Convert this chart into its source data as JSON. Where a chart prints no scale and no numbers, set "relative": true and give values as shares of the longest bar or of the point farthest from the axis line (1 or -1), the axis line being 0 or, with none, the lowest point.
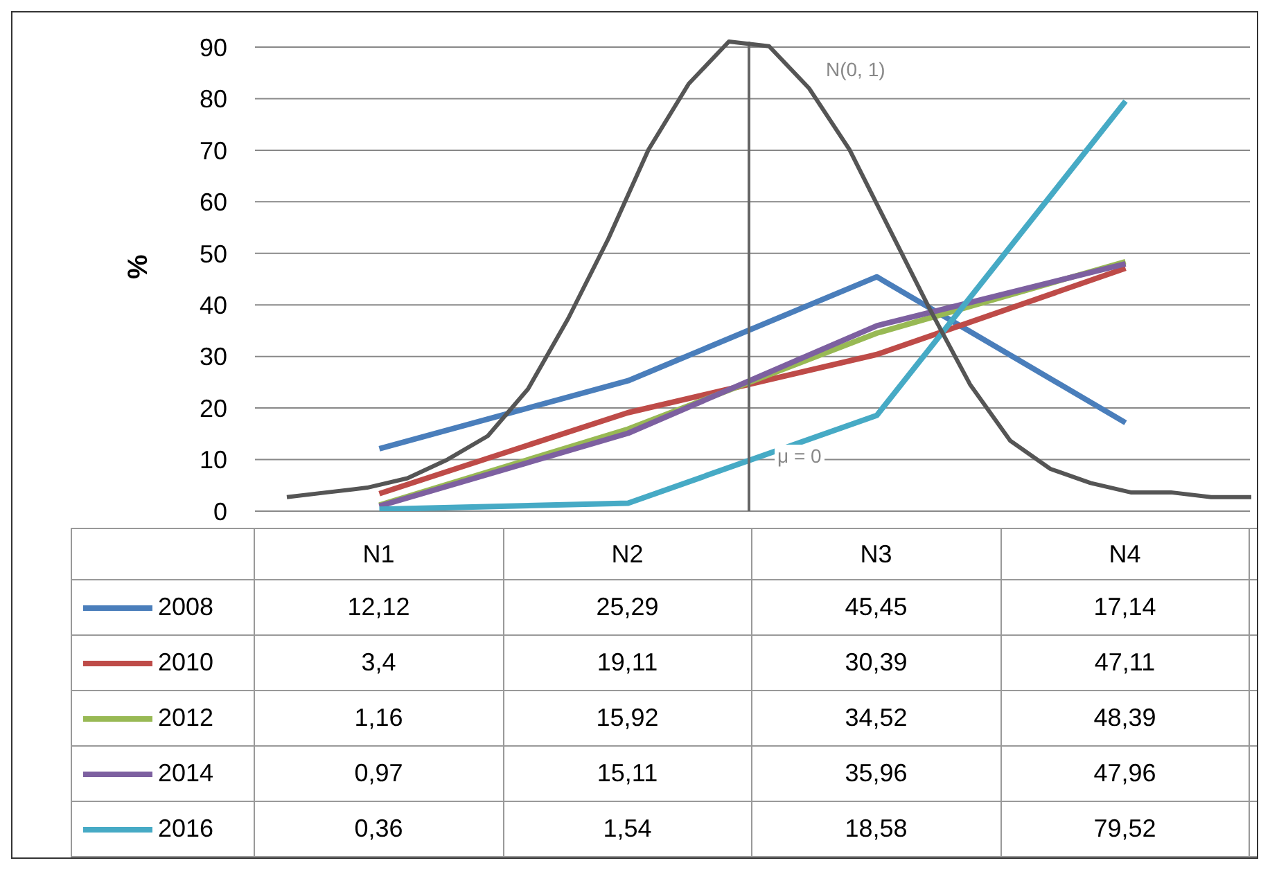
{
  "chart_data": [
    {
      "type": "line",
      "ylabel": "%",
      "categories": [
        "N1",
        "N2",
        "N3",
        "N4"
      ],
      "series": [
        {
          "name": "2008",
          "color": "#4a7ebb",
          "values": [
            12.12,
            25.29,
            45.45,
            17.14
          ]
        },
        {
          "name": "2010",
          "color": "#be4b48",
          "values": [
            3.4,
            19.11,
            30.39,
            47.11
          ]
        },
        {
          "name": "2012",
          "color": "#98b954",
          "values": [
            1.16,
            15.92,
            34.52,
            48.39
          ]
        },
        {
          "name": "2014",
          "color": "#7d60a0",
          "values": [
            0.97,
            15.11,
            35.96,
            47.96
          ]
        },
        {
          "name": "2016",
          "color": "#46aac5",
          "values": [
            0.36,
            1.54,
            18.58,
            79.52
          ]
        }
      ],
      "value_labels": [
        [
          "12,12",
          "25,29",
          "45,45",
          "17,14"
        ],
        [
          "3,4",
          "19,11",
          "30,39",
          "47,11"
        ],
        [
          "1,16",
          "15,92",
          "34,52",
          "48,39"
        ],
        [
          "0,97",
          "15,11",
          "35,96",
          "47,96"
        ],
        [
          "0,36",
          "1,54",
          "18,58",
          "79,52"
        ]
      ],
      "ylim": [
        0,
        90
      ],
      "yticks": [
        0,
        10,
        20,
        30,
        40,
        50,
        60,
        70,
        80,
        90
      ],
      "grid": "y",
      "legend": "bottom",
      "marker": "none",
      "line_style": "solid"
    },
    {
      "type": "line",
      "relative": true,
      "annotations": [
        "N(0, 1)",
        "μ = 0"
      ],
      "categories": [
        null,
        null,
        null,
        null,
        null,
        null,
        null,
        null,
        null,
        null,
        null,
        null,
        null,
        null,
        null,
        null,
        null,
        null,
        null,
        null,
        null,
        null,
        null,
        null,
        null
      ],
      "series": [
        {
          "color": "#555555",
          "values": [
            0.03,
            0.04,
            0.05,
            0.07,
            0.11,
            0.16,
            0.26,
            0.41,
            0.58,
            0.77,
            0.91,
            1,
            0.99,
            0.9,
            0.77,
            0.6,
            0.43,
            0.27,
            0.15,
            0.09,
            0.06,
            0.04,
            0.04,
            0.03,
            0.03
          ]
        }
      ],
      "marker": "none",
      "line_style": "solid"
    }
  ]
}
